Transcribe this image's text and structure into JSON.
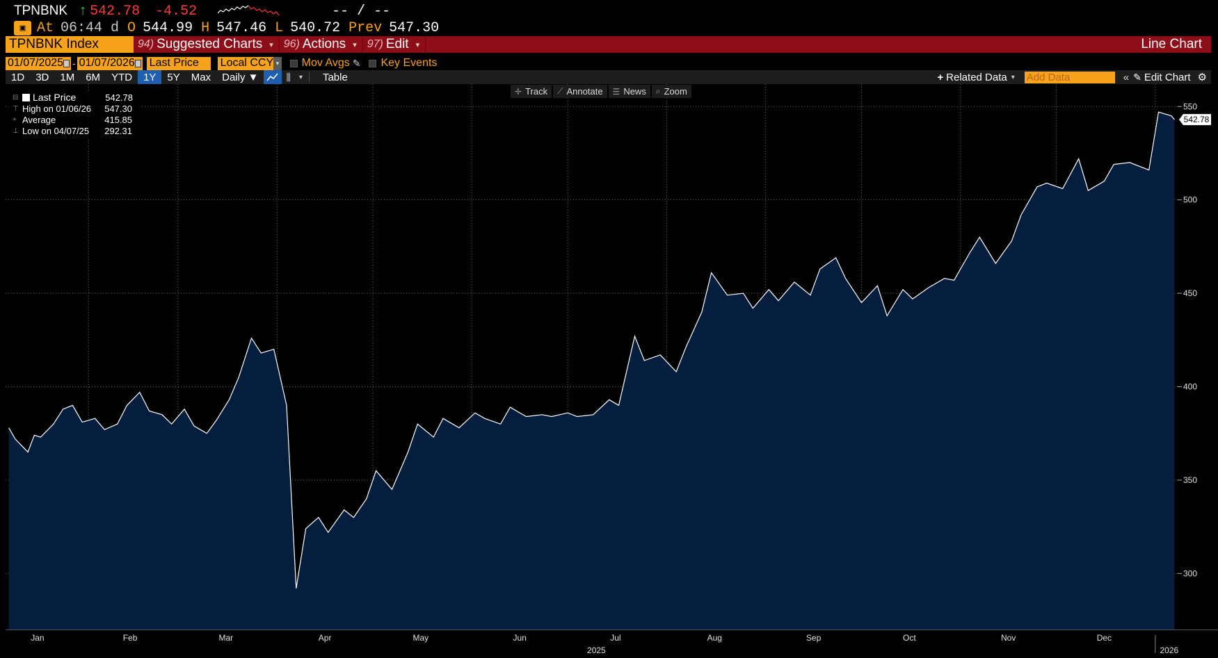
{
  "quote": {
    "ticker": "TPNBNK",
    "arrow": "↑",
    "last": "542.78",
    "change": "-4.52",
    "bid_ask": "-- / --",
    "at_label": "At",
    "time": "06:44",
    "day_flag": "d",
    "open_label": "O",
    "open": "544.99",
    "high_label": "H",
    "high": "547.46",
    "low_label": "L",
    "low": "540.72",
    "prev_label": "Prev",
    "prev": "547.30"
  },
  "menubar": {
    "security": "TPNBNK Index",
    "items": [
      {
        "num": "94)",
        "label": "Suggested Charts"
      },
      {
        "num": "96)",
        "label": "Actions"
      },
      {
        "num": "97)",
        "label": "Edit"
      }
    ],
    "chart_title": "Line Chart"
  },
  "settings": {
    "start_date": "01/07/2025",
    "end_date": "01/07/2026",
    "field": "Last Price",
    "currency": "Local CCY",
    "mov_avgs": "Mov Avgs",
    "key_events": "Key Events"
  },
  "toolbar": {
    "ranges": [
      "1D",
      "3D",
      "1M",
      "6M",
      "YTD",
      "1Y",
      "5Y",
      "Max"
    ],
    "active_range": "1Y",
    "frequency": "Daily ▼",
    "table": "Table",
    "related_data": "Related Data",
    "add_data_placeholder": "Add Data",
    "edit_chart": "Edit Chart"
  },
  "chart_tools": [
    "Track",
    "Annotate",
    "News",
    "Zoom"
  ],
  "legend": [
    {
      "label": "Last Price",
      "value": "542.78"
    },
    {
      "label": "High on 01/06/26",
      "value": "547.30"
    },
    {
      "label": "Average",
      "value": "415.85"
    },
    {
      "label": "Low on 04/07/25",
      "value": "292.31"
    }
  ],
  "colors": {
    "accent_orange": "#f7a21b",
    "menu_red": "#8d0e18",
    "area_fill": "#051e3e",
    "line": "#ffffff",
    "up": "#22e02a",
    "down": "#ff3b3b"
  },
  "chart_data": {
    "type": "area",
    "series": [
      {
        "name": "Last Price",
        "unit": "index points"
      }
    ],
    "x": [
      "2025-01-07",
      "2025-01-09",
      "2025-01-13",
      "2025-01-15",
      "2025-01-17",
      "2025-01-21",
      "2025-01-24",
      "2025-01-27",
      "2025-01-30",
      "2025-02-03",
      "2025-02-06",
      "2025-02-10",
      "2025-02-13",
      "2025-02-17",
      "2025-02-20",
      "2025-02-24",
      "2025-02-27",
      "2025-03-03",
      "2025-03-06",
      "2025-03-10",
      "2025-03-13",
      "2025-03-17",
      "2025-03-20",
      "2025-03-24",
      "2025-03-27",
      "2025-03-31",
      "2025-04-04",
      "2025-04-07",
      "2025-04-10",
      "2025-04-14",
      "2025-04-17",
      "2025-04-22",
      "2025-04-25",
      "2025-04-29",
      "2025-05-02",
      "2025-05-07",
      "2025-05-12",
      "2025-05-15",
      "2025-05-20",
      "2025-05-23",
      "2025-05-28",
      "2025-06-02",
      "2025-06-05",
      "2025-06-10",
      "2025-06-13",
      "2025-06-18",
      "2025-06-23",
      "2025-06-26",
      "2025-07-01",
      "2025-07-04",
      "2025-07-09",
      "2025-07-14",
      "2025-07-17",
      "2025-07-22",
      "2025-07-25",
      "2025-07-30",
      "2025-08-04",
      "2025-08-07",
      "2025-08-12",
      "2025-08-15",
      "2025-08-20",
      "2025-08-25",
      "2025-08-28",
      "2025-09-02",
      "2025-09-05",
      "2025-09-10",
      "2025-09-15",
      "2025-09-18",
      "2025-09-23",
      "2025-09-26",
      "2025-10-01",
      "2025-10-06",
      "2025-10-09",
      "2025-10-14",
      "2025-10-17",
      "2025-10-22",
      "2025-10-27",
      "2025-10-30",
      "2025-11-04",
      "2025-11-07",
      "2025-11-12",
      "2025-11-17",
      "2025-11-20",
      "2025-11-25",
      "2025-11-28",
      "2025-12-03",
      "2025-12-08",
      "2025-12-11",
      "2025-12-16",
      "2025-12-19",
      "2025-12-24",
      "2025-12-30",
      "2026-01-02",
      "2026-01-06",
      "2026-01-07"
    ],
    "y": [
      378,
      372,
      365,
      374,
      373,
      380,
      388,
      390,
      381,
      383,
      377,
      380,
      390,
      397,
      387,
      385,
      380,
      388,
      379,
      375,
      382,
      393,
      405,
      426,
      418,
      420,
      390,
      292,
      324,
      330,
      322,
      334,
      330,
      340,
      355,
      345,
      365,
      380,
      373,
      383,
      378,
      386,
      383,
      380,
      389,
      384,
      385,
      384,
      386,
      384,
      385,
      393,
      390,
      427,
      414,
      417,
      408,
      421,
      440,
      461,
      449,
      450,
      442,
      452,
      446,
      456,
      449,
      463,
      469,
      458,
      445,
      454,
      438,
      452,
      447,
      453,
      458,
      457,
      472,
      480,
      466,
      478,
      492,
      507,
      509,
      506,
      522,
      505,
      510,
      519,
      520,
      516,
      547,
      545,
      543
    ],
    "ylim": [
      270,
      562
    ],
    "yticks": [
      300,
      350,
      400,
      450,
      500,
      550
    ],
    "x_labels": [
      "Jan",
      "Feb",
      "Mar",
      "Apr",
      "May",
      "Jun",
      "Jul",
      "Aug",
      "Sep",
      "Oct",
      "Nov",
      "Dec"
    ],
    "year_labels": [
      "2025",
      "2026"
    ],
    "last_value_label": "542.78",
    "grid": true
  }
}
